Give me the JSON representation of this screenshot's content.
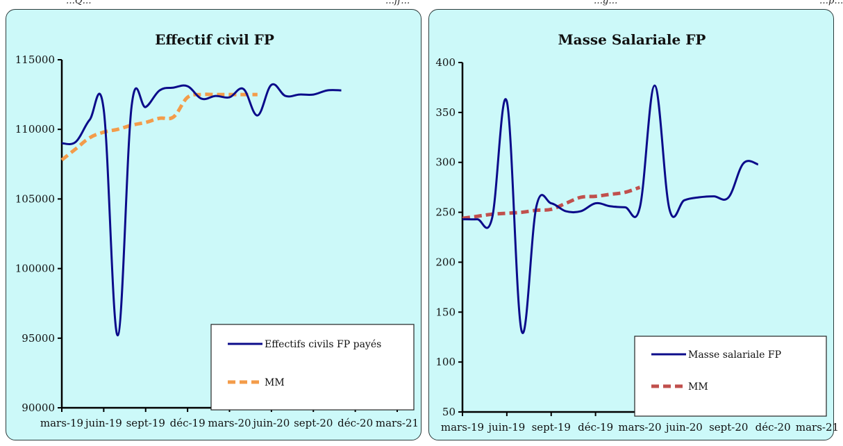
{
  "page": {
    "top_fragments": [
      "…Q…",
      "…ff…",
      "…g…",
      "…p…"
    ]
  },
  "chart_data": [
    {
      "type": "line",
      "title": "Effectif civil FP",
      "xlabel": "",
      "ylabel": "",
      "categories": [
        "mars-19",
        "avr-19",
        "mai-19",
        "juin-19",
        "juil-19",
        "août-19",
        "sept-19",
        "oct-19",
        "nov-19",
        "déc-19",
        "janv-20",
        "févr-20",
        "mars-20",
        "avr-20",
        "mai-20",
        "juin-20",
        "juil-20",
        "août-20",
        "sept-20",
        "oct-20",
        "nov-20",
        "déc-20",
        "janv-21",
        "févr-21",
        "mars-21"
      ],
      "x_tick_labels": [
        "mars-19",
        "juin-19",
        "sept-19",
        "déc-19",
        "mars-20",
        "juin-20",
        "sept-20",
        "déc-20",
        "mars-21"
      ],
      "ylim": [
        90000,
        115000
      ],
      "y_ticks": [
        "90000",
        "95000",
        "100000",
        "105000",
        "110000",
        "115000"
      ],
      "series": [
        {
          "name": "Effectifs civils FP payés",
          "color": "#0b0b8a",
          "dash": "solid",
          "values": [
            109000,
            109100,
            110700,
            111400,
            95200,
            111700,
            111600,
            112800,
            113000,
            113100,
            112200,
            112400,
            112300,
            112900,
            111000,
            113200,
            112400,
            112500,
            112500,
            112800,
            112800,
            null,
            null,
            null,
            null
          ]
        },
        {
          "name": "MM",
          "color": "#f39c4a",
          "dash": "dashed",
          "values": [
            107800,
            108600,
            109400,
            109800,
            110000,
            110300,
            110500,
            110800,
            110900,
            112300,
            112500,
            112500,
            112500,
            112500,
            112500,
            null,
            null,
            null,
            null,
            null,
            null,
            null,
            null,
            null,
            null
          ]
        }
      ],
      "legend_position": "bottom-right",
      "grid": false
    },
    {
      "type": "line",
      "title": "Masse Salariale FP",
      "xlabel": "",
      "ylabel": "",
      "categories": [
        "mars-19",
        "avr-19",
        "mai-19",
        "juin-19",
        "juil-19",
        "août-19",
        "sept-19",
        "oct-19",
        "nov-19",
        "déc-19",
        "janv-20",
        "févr-20",
        "mars-20",
        "avr-20",
        "mai-20",
        "juin-20",
        "juil-20",
        "août-20",
        "sept-20",
        "oct-20",
        "nov-20",
        "déc-20",
        "janv-21",
        "févr-21",
        "mars-21"
      ],
      "x_tick_labels": [
        "mars-19",
        "juin-19",
        "sept-19",
        "déc-19",
        "mars-20",
        "juin-20",
        "sept-20",
        "déc-20",
        "mars-21"
      ],
      "ylim": [
        50,
        400
      ],
      "y_ticks": [
        "50",
        "100",
        "150",
        "200",
        "250",
        "300",
        "350",
        "400"
      ],
      "series": [
        {
          "name": "Masse salariale FP",
          "color": "#0b0b8a",
          "dash": "solid",
          "values": [
            243,
            243,
            244,
            361,
            131,
            256,
            259,
            251,
            251,
            259,
            256,
            255,
            255,
            377,
            253,
            262,
            265,
            266,
            265,
            299,
            298,
            null,
            null,
            null,
            null
          ]
        },
        {
          "name": "MM",
          "color": "#c0504d",
          "dash": "dashed",
          "values": [
            244,
            246,
            248,
            249,
            250,
            252,
            253,
            259,
            265,
            266,
            268,
            270,
            275,
            null,
            null,
            null,
            null,
            null,
            null,
            null,
            null,
            null,
            null,
            null,
            null
          ]
        }
      ],
      "legend_position": "bottom-right",
      "grid": false
    }
  ]
}
